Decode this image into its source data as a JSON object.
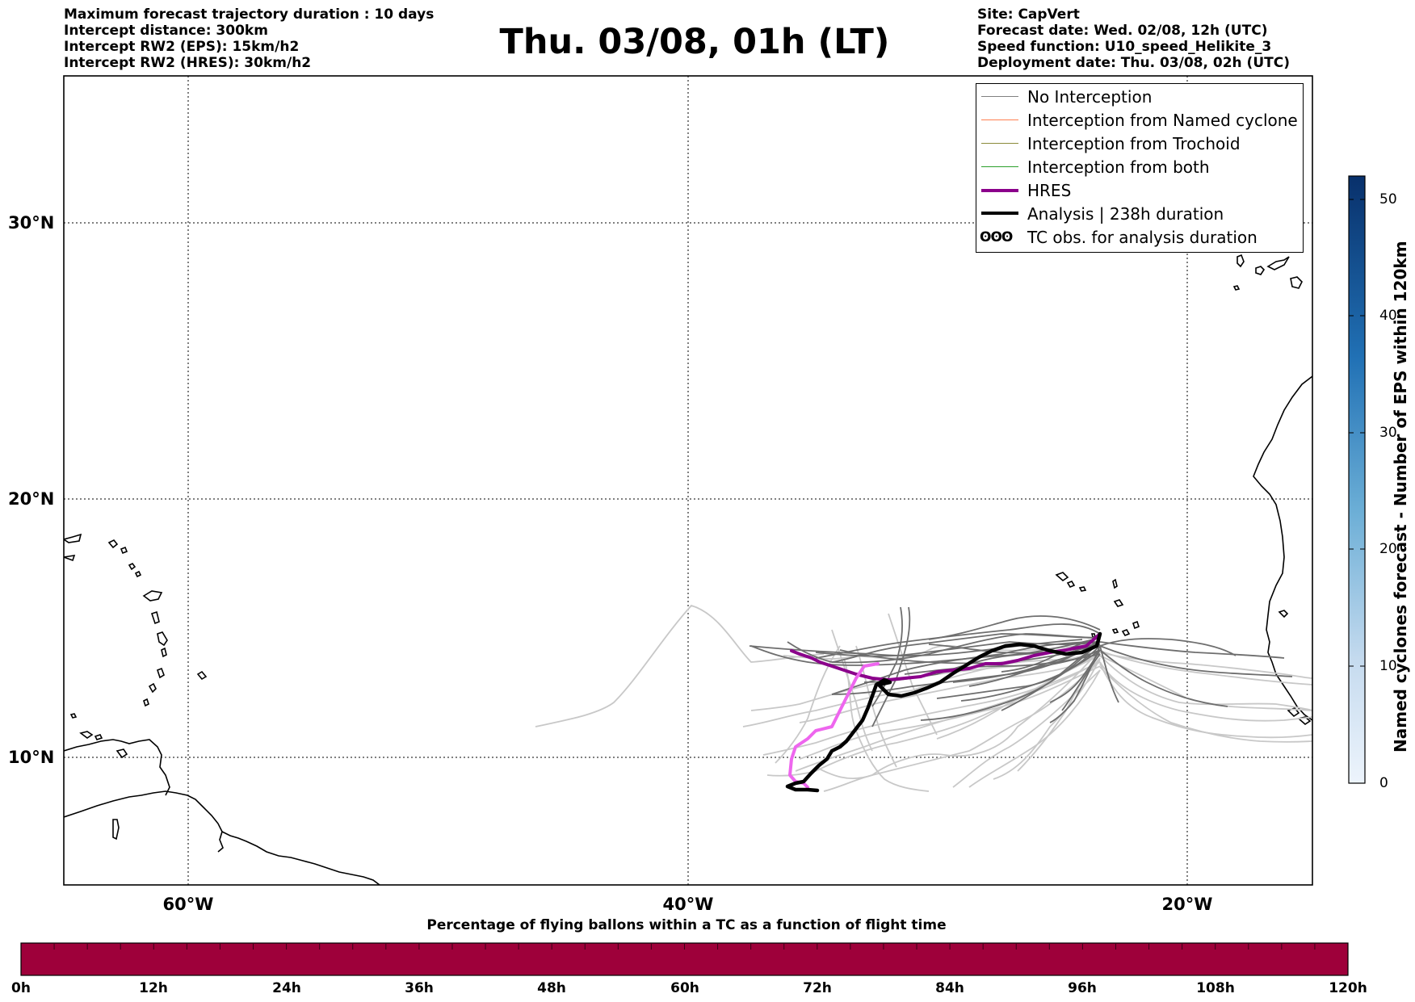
{
  "header": {
    "left_lines": [
      "Maximum forecast trajectory duration : 10 days",
      "Intercept distance: 300km",
      "Intercept RW2 (EPS):  15km/h2",
      "Intercept RW2 (HRES): 30km/h2"
    ],
    "title": "Thu. 03/08, 01h (LT)",
    "right_lines": [
      "Site: CapVert",
      "Forecast date: Wed. 02/08, 12h (UTC)",
      "Speed function: U10_speed_Helikite_3",
      "Deployment date: Thu. 03/08, 02h (UTC)"
    ]
  },
  "map": {
    "lat_labels": [
      "30°N",
      "20°N",
      "10°N"
    ],
    "lon_labels": [
      "60°W",
      "40°W",
      "20°W"
    ],
    "extent": {
      "lon": [
        -65,
        -15
      ],
      "lat": [
        5.4,
        34.7
      ]
    }
  },
  "legend": {
    "items": [
      {
        "label": "No Interception",
        "color": "#808080"
      },
      {
        "label": "Interception from Named cyclone",
        "color": "#ff7f50"
      },
      {
        "label": "Interception from Trochoid",
        "color": "#8b8b3a"
      },
      {
        "label": "Interception from both",
        "color": "#2ca02c"
      },
      {
        "label": "HRES",
        "color": "#8b008b"
      },
      {
        "label": "Analysis | 238h duration",
        "color": "#000000"
      },
      {
        "label": "TC obs. for analysis duration",
        "symbol": "ʘʘʘ"
      }
    ]
  },
  "colorbar_vertical": {
    "title": "Named cyclones forecast - Number of EPS within 120km",
    "ticks": [
      "50",
      "40",
      "30",
      "20",
      "10",
      "0"
    ],
    "range": [
      0,
      52
    ],
    "colors": [
      "#e9f2fb",
      "#08306b"
    ]
  },
  "colorbar_horizontal": {
    "title": "Percentage of flying ballons within a TC as a function of flight time",
    "ticks": [
      "0h",
      "12h",
      "24h",
      "36h",
      "48h",
      "60h",
      "72h",
      "84h",
      "96h",
      "108h",
      "120h"
    ],
    "fill_color": "#9e003a"
  }
}
